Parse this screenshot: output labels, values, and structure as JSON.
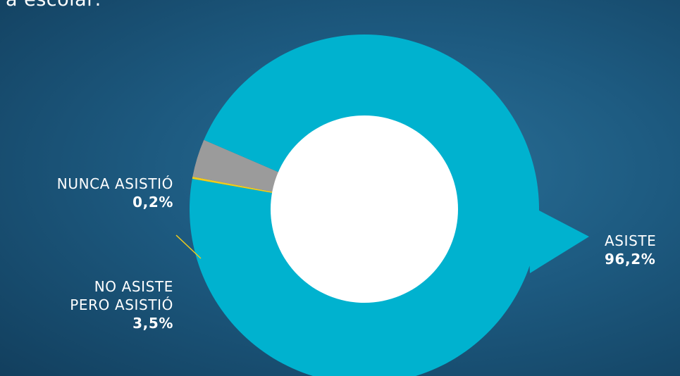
{
  "title": "a escolar:",
  "chart_data": {
    "type": "pie",
    "variant": "donut",
    "slices": [
      {
        "label": "ASISTE",
        "value": 96.2,
        "value_label": "96,2%",
        "color": "#00b2cf"
      },
      {
        "label": "NUNCA ASISTIÓ",
        "value": 0.2,
        "value_label": "0,2%",
        "color": "#f2cc1b"
      },
      {
        "label": "NO ASISTE PERO ASISTIÓ",
        "label_lines": [
          "NO ASISTE",
          "PERO ASISTIÓ"
        ],
        "value": 3.5,
        "value_label": "3,5%",
        "color": "#9b9b9b"
      }
    ]
  }
}
